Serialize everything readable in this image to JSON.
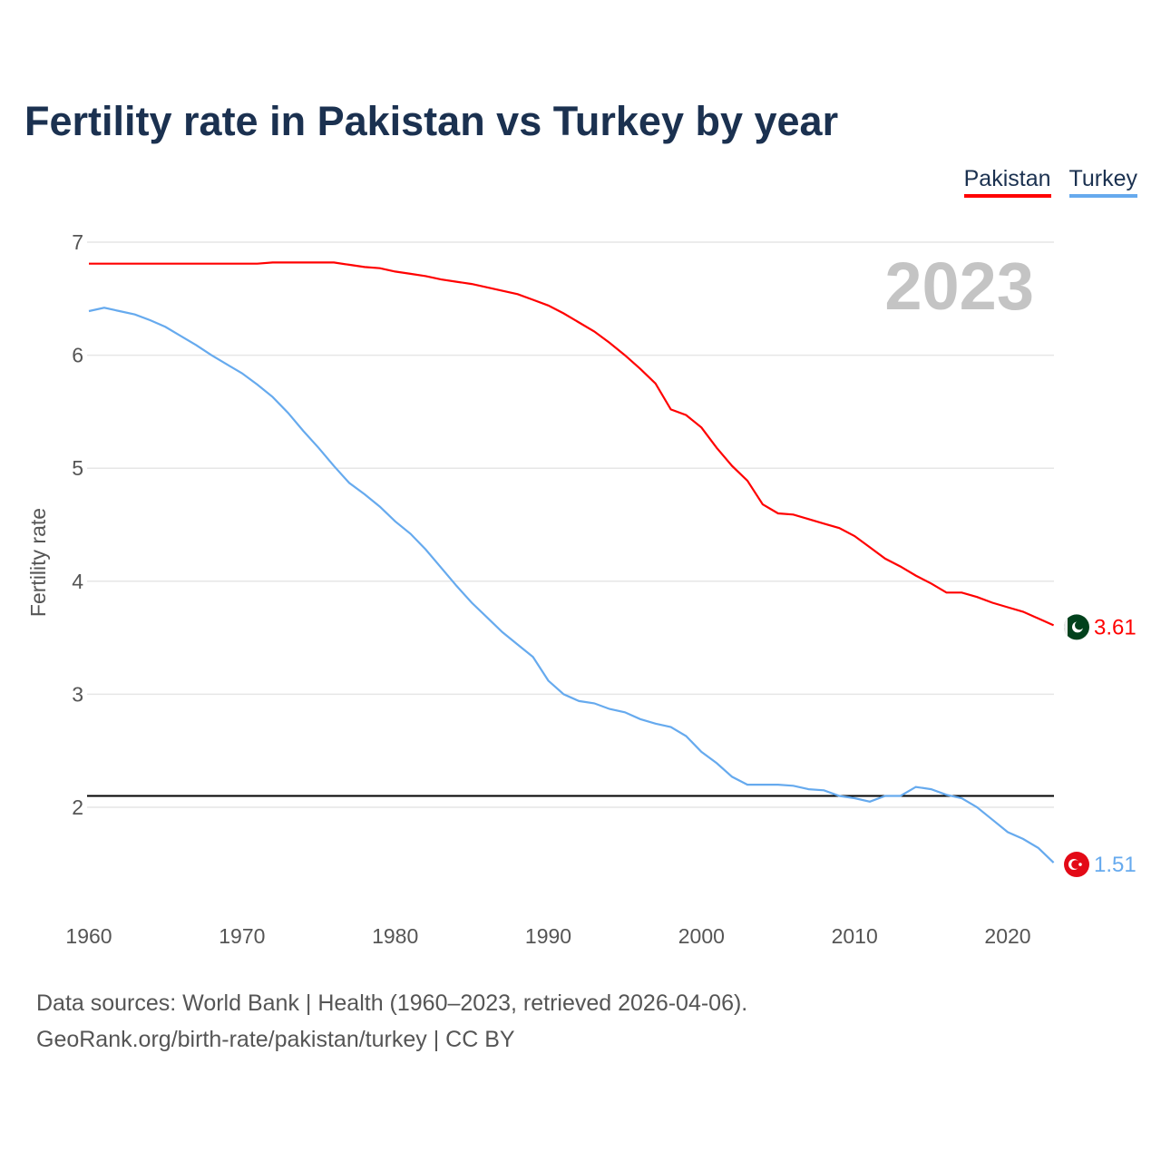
{
  "chart_data": {
    "type": "line",
    "title": "Fertility rate in Pakistan vs Turkey by year",
    "xlabel": "",
    "ylabel": "Fertility rate",
    "xlim": [
      1960,
      2023
    ],
    "ylim": [
      1.2,
      7
    ],
    "x_ticks": [
      "1960",
      "1970",
      "1980",
      "1990",
      "2000",
      "2010",
      "2020"
    ],
    "y_ticks": [
      "2",
      "3",
      "4",
      "5",
      "6",
      "7"
    ],
    "grid": true,
    "legend_position": "top-right",
    "current_year_label": "2023",
    "reference_line": 2.1,
    "x": [
      1960,
      1961,
      1962,
      1963,
      1964,
      1965,
      1966,
      1967,
      1968,
      1969,
      1970,
      1971,
      1972,
      1973,
      1974,
      1975,
      1976,
      1977,
      1978,
      1979,
      1980,
      1981,
      1982,
      1983,
      1984,
      1985,
      1986,
      1987,
      1988,
      1989,
      1990,
      1991,
      1992,
      1993,
      1994,
      1995,
      1996,
      1997,
      1998,
      1999,
      2000,
      2001,
      2002,
      2003,
      2004,
      2005,
      2006,
      2007,
      2008,
      2009,
      2010,
      2011,
      2012,
      2013,
      2014,
      2015,
      2016,
      2017,
      2018,
      2019,
      2020,
      2021,
      2022,
      2023
    ],
    "series": [
      {
        "name": "Pakistan",
        "color": "#ff0000",
        "end_label": "3.61",
        "values": [
          6.81,
          6.81,
          6.81,
          6.81,
          6.81,
          6.81,
          6.81,
          6.81,
          6.81,
          6.81,
          6.81,
          6.81,
          6.82,
          6.82,
          6.82,
          6.82,
          6.82,
          6.8,
          6.78,
          6.77,
          6.74,
          6.72,
          6.7,
          6.67,
          6.65,
          6.63,
          6.6,
          6.57,
          6.54,
          6.49,
          6.44,
          6.37,
          6.29,
          6.21,
          6.11,
          6.0,
          5.88,
          5.75,
          5.52,
          5.47,
          5.36,
          5.18,
          5.02,
          4.89,
          4.68,
          4.6,
          4.59,
          4.55,
          4.51,
          4.47,
          4.4,
          4.3,
          4.2,
          4.13,
          4.05,
          3.98,
          3.9,
          3.9,
          3.86,
          3.81,
          3.77,
          3.73,
          3.67,
          3.61
        ]
      },
      {
        "name": "Turkey",
        "color": "#66aaee",
        "end_label": "1.51",
        "values": [
          6.39,
          6.42,
          6.39,
          6.36,
          6.31,
          6.25,
          6.17,
          6.09,
          6.0,
          5.92,
          5.84,
          5.74,
          5.63,
          5.49,
          5.33,
          5.18,
          5.02,
          4.87,
          4.77,
          4.66,
          4.53,
          4.42,
          4.28,
          4.12,
          3.96,
          3.81,
          3.68,
          3.55,
          3.44,
          3.33,
          3.12,
          3.0,
          2.94,
          2.92,
          2.87,
          2.84,
          2.78,
          2.74,
          2.71,
          2.63,
          2.49,
          2.39,
          2.27,
          2.2,
          2.2,
          2.2,
          2.19,
          2.16,
          2.15,
          2.1,
          2.08,
          2.05,
          2.1,
          2.1,
          2.18,
          2.16,
          2.11,
          2.08,
          2.0,
          1.89,
          1.78,
          1.72,
          1.64,
          1.51
        ]
      }
    ]
  },
  "footer": {
    "line1": "Data sources: World Bank | Health (1960–2023, retrieved 2026-04-06).",
    "line2": "GeoRank.org/birth-rate/pakistan/turkey | CC BY"
  }
}
